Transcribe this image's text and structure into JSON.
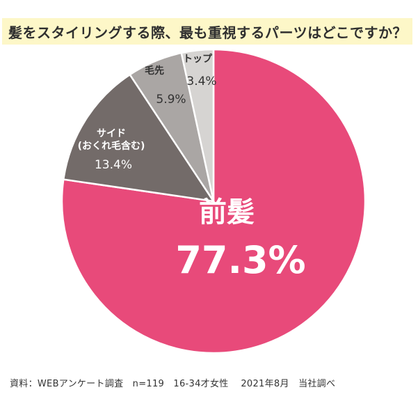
{
  "title": "髪をスタイリングする際、最も重視するパーツはどこですか？",
  "footer": "資料：WEBアンケート調査　n=119　16-34才女性　 2021年8月　当社調べ",
  "chart_data": {
    "type": "pie",
    "title": "髪をスタイリングする際、最も重視するパーツはどこですか？",
    "slices": [
      {
        "label": "前髪",
        "value": 77.3,
        "value_label": "77.3%",
        "color": "#e84a7a"
      },
      {
        "label": "サイド\n(おくれ毛含む)",
        "value": 13.4,
        "value_label": "13.4%",
        "color": "#736b69"
      },
      {
        "label": "毛先",
        "value": 5.9,
        "value_label": "5.9%",
        "color": "#aaa6a4"
      },
      {
        "label": "トップ",
        "value": 3.4,
        "value_label": "3.4%",
        "color": "#d6d4d2"
      }
    ]
  }
}
